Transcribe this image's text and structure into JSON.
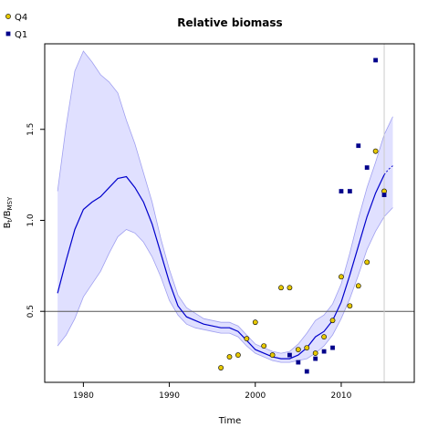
{
  "chart_data": {
    "type": "line",
    "title": "Relative biomass",
    "xlabel": "Time",
    "ylabel_main": "B",
    "ylabel_sub1": "t",
    "ylabel_mid": "/B",
    "ylabel_sub2": "MSY",
    "xlim": [
      1975.5,
      2018.5
    ],
    "ylim": [
      0.11,
      1.97
    ],
    "x_ticks": [
      1980,
      1990,
      2000,
      2010
    ],
    "x_tick_labels": [
      "1980",
      "1990",
      "2000",
      "2010"
    ],
    "y_ticks": [
      0.5,
      1.0,
      1.5
    ],
    "y_tick_labels": [
      "0.5",
      "1.0",
      "1.5"
    ],
    "reference_line_y": 0.5,
    "vertical_line_x": 2015,
    "legend_position": "top-left",
    "legend": [
      {
        "label": "Q4",
        "marker": "circle",
        "color": "#e6c800"
      },
      {
        "label": "Q1",
        "marker": "square",
        "color": "#00008b"
      }
    ],
    "colors": {
      "line": "#0000cc",
      "band_fill": "#e0e0ff",
      "band_edge": "#a0a0f0",
      "q4_fill": "#e6c800",
      "q1_fill": "#00008b",
      "reference_line": "#555555",
      "vertical_line": "#cccccc"
    },
    "median": {
      "x": [
        1977,
        1978,
        1979,
        1980,
        1981,
        1982,
        1983,
        1984,
        1985,
        1986,
        1987,
        1988,
        1989,
        1990,
        1991,
        1992,
        1993,
        1994,
        1995,
        1996,
        1997,
        1998,
        1999,
        2000,
        2001,
        2002,
        2003,
        2004,
        2005,
        2006,
        2007,
        2008,
        2009,
        2010,
        2011,
        2012,
        2013,
        2014,
        2015
      ],
      "y": [
        0.6,
        0.78,
        0.95,
        1.06,
        1.1,
        1.13,
        1.18,
        1.23,
        1.24,
        1.18,
        1.1,
        0.98,
        0.82,
        0.66,
        0.53,
        0.47,
        0.45,
        0.43,
        0.42,
        0.41,
        0.41,
        0.39,
        0.34,
        0.29,
        0.27,
        0.25,
        0.24,
        0.24,
        0.26,
        0.3,
        0.36,
        0.39,
        0.45,
        0.55,
        0.7,
        0.86,
        1.02,
        1.15,
        1.25
      ]
    },
    "median_projection": {
      "x": [
        2015,
        2015.5,
        2016
      ],
      "y": [
        1.25,
        1.28,
        1.3
      ]
    },
    "band": {
      "x": [
        1977,
        1978,
        1979,
        1980,
        1981,
        1982,
        1983,
        1984,
        1985,
        1986,
        1987,
        1988,
        1989,
        1990,
        1991,
        1992,
        1993,
        1994,
        1995,
        1996,
        1997,
        1998,
        1999,
        2000,
        2001,
        2002,
        2003,
        2004,
        2005,
        2006,
        2007,
        2008,
        2009,
        2010,
        2011,
        2012,
        2013,
        2014,
        2015,
        2016
      ],
      "upper": [
        1.16,
        1.52,
        1.82,
        1.93,
        1.87,
        1.8,
        1.76,
        1.7,
        1.55,
        1.42,
        1.26,
        1.1,
        0.9,
        0.73,
        0.59,
        0.52,
        0.49,
        0.46,
        0.45,
        0.44,
        0.44,
        0.42,
        0.37,
        0.32,
        0.3,
        0.28,
        0.27,
        0.28,
        0.32,
        0.38,
        0.45,
        0.48,
        0.54,
        0.65,
        0.82,
        1.01,
        1.18,
        1.32,
        1.47,
        1.57
      ],
      "lower": [
        0.31,
        0.37,
        0.46,
        0.58,
        0.65,
        0.72,
        0.82,
        0.91,
        0.95,
        0.93,
        0.88,
        0.8,
        0.69,
        0.56,
        0.48,
        0.43,
        0.41,
        0.4,
        0.39,
        0.38,
        0.38,
        0.36,
        0.31,
        0.27,
        0.25,
        0.23,
        0.22,
        0.22,
        0.23,
        0.24,
        0.27,
        0.31,
        0.37,
        0.46,
        0.57,
        0.7,
        0.84,
        0.94,
        1.02,
        1.07
      ]
    },
    "series": [
      {
        "name": "Q4",
        "marker": "circle",
        "x": [
          1996,
          1997,
          1998,
          1999,
          2000,
          2001,
          2002,
          2003,
          2004,
          2005,
          2006,
          2007,
          2008,
          2009,
          2010,
          2011,
          2012,
          2013,
          2014,
          2015
        ],
        "y": [
          0.19,
          0.25,
          0.26,
          0.35,
          0.44,
          0.31,
          0.26,
          0.63,
          0.63,
          0.29,
          0.3,
          0.27,
          0.36,
          0.45,
          0.69,
          0.53,
          0.64,
          0.77,
          1.38,
          1.16
        ]
      },
      {
        "name": "Q1",
        "marker": "square",
        "x": [
          2004,
          2005,
          2006,
          2007,
          2008,
          2009,
          2010,
          2011,
          2012,
          2013,
          2014,
          2015
        ],
        "y": [
          0.26,
          0.22,
          0.17,
          0.24,
          0.28,
          0.3,
          1.16,
          1.16,
          1.41,
          1.29,
          1.88,
          1.14
        ]
      }
    ]
  }
}
